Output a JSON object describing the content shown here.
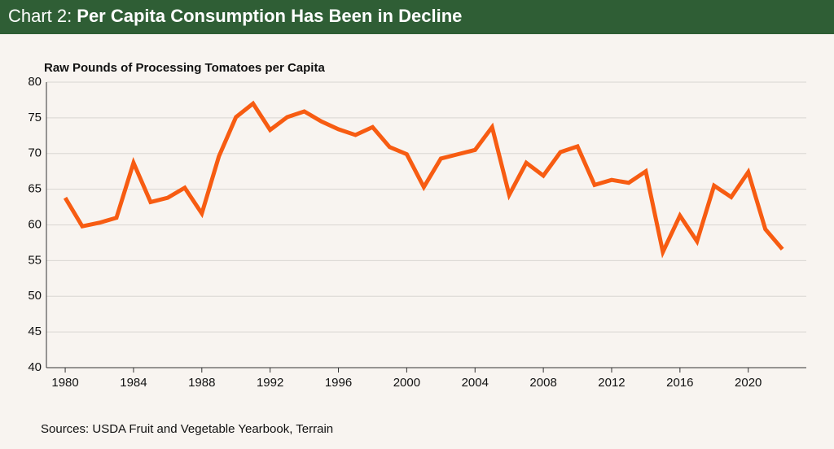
{
  "chart_data": {
    "type": "line",
    "title_prefix": "Chart 2:",
    "title": "Per Capita Consumption Has Been in Decline",
    "y_label": "Raw Pounds of Processing Tomatoes per Capita",
    "source": "Sources: USDA Fruit and Vegetable Yearbook, Terrain",
    "x": [
      1980,
      1981,
      1982,
      1983,
      1984,
      1985,
      1986,
      1987,
      1988,
      1989,
      1990,
      1991,
      1992,
      1993,
      1994,
      1995,
      1996,
      1997,
      1998,
      1999,
      2000,
      2001,
      2002,
      2003,
      2004,
      2005,
      2006,
      2007,
      2008,
      2009,
      2010,
      2011,
      2012,
      2013,
      2014,
      2015,
      2016,
      2017,
      2018,
      2019,
      2020,
      2021,
      2022
    ],
    "values": [
      63.8,
      59.8,
      60.3,
      61.0,
      68.7,
      63.2,
      63.8,
      65.2,
      61.6,
      69.6,
      75.1,
      77.0,
      73.3,
      75.1,
      75.9,
      74.5,
      73.4,
      72.6,
      73.7,
      70.9,
      69.9,
      65.3,
      69.3,
      69.9,
      70.5,
      73.7,
      64.2,
      68.7,
      66.9,
      70.2,
      71.0,
      65.6,
      66.3,
      65.9,
      67.5,
      56.2,
      61.3,
      57.7,
      65.5,
      63.9,
      67.4,
      59.4,
      56.6
    ],
    "color": "#f75c12",
    "xlim": [
      1978.9,
      2023.4
    ],
    "xticks": [
      1980,
      1984,
      1988,
      1992,
      1996,
      2000,
      2004,
      2008,
      2012,
      2016,
      2020
    ],
    "ylim": [
      40,
      80
    ],
    "yticks": [
      40,
      45,
      50,
      55,
      60,
      65,
      70,
      75,
      80
    ],
    "grid": true
  }
}
